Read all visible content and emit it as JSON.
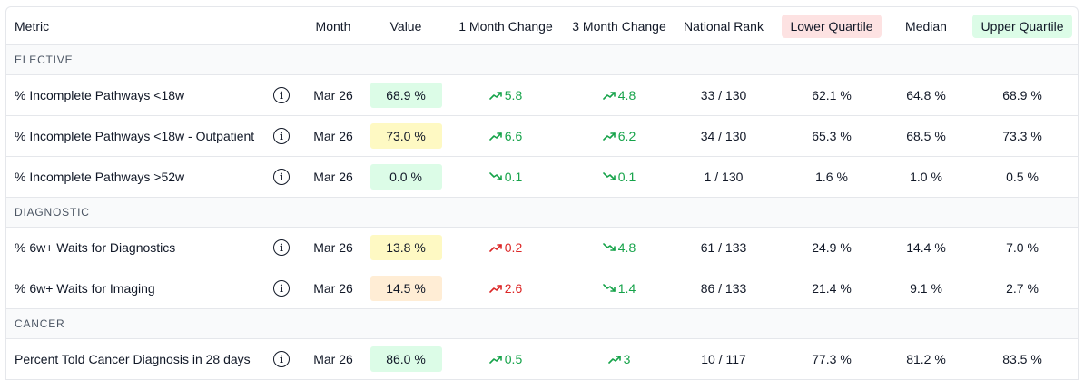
{
  "headers": {
    "metric": "Metric",
    "month": "Month",
    "value": "Value",
    "one_month": "1 Month Change",
    "three_month": "3 Month Change",
    "rank": "National Rank",
    "lower": "Lower Quartile",
    "median": "Median",
    "upper": "Upper Quartile"
  },
  "colors": {
    "green_bg": "#dcfce7",
    "yellow_bg": "#fef9c3",
    "orange_bg": "#ffedd5",
    "red_bg": "#fde2e2",
    "up_green": "#16a34a",
    "up_red": "#dc2626"
  },
  "sections": [
    {
      "label": "ELECTIVE",
      "rows": [
        {
          "metric": "% Incomplete Pathways <18w",
          "month": "Mar 26",
          "value": "68.9 %",
          "value_color": "green",
          "one_month": "5.8",
          "one_dir": "up",
          "one_color": "green",
          "three_month": "4.8",
          "three_dir": "up",
          "three_color": "green",
          "rank": "33 / 130",
          "lower": "62.1 %",
          "median": "64.8 %",
          "upper": "68.9 %"
        },
        {
          "metric": "% Incomplete Pathways <18w - Outpatient",
          "month": "Mar 26",
          "value": "73.0 %",
          "value_color": "yellow",
          "one_month": "6.6",
          "one_dir": "up",
          "one_color": "green",
          "three_month": "6.2",
          "three_dir": "up",
          "three_color": "green",
          "rank": "34 / 130",
          "lower": "65.3 %",
          "median": "68.5 %",
          "upper": "73.3 %"
        },
        {
          "metric": "% Incomplete Pathways >52w",
          "month": "Mar 26",
          "value": "0.0 %",
          "value_color": "green",
          "one_month": "0.1",
          "one_dir": "down",
          "one_color": "green",
          "three_month": "0.1",
          "three_dir": "down",
          "three_color": "green",
          "rank": "1 / 130",
          "lower": "1.6 %",
          "median": "1.0 %",
          "upper": "0.5 %"
        }
      ]
    },
    {
      "label": "DIAGNOSTIC",
      "rows": [
        {
          "metric": "% 6w+ Waits for Diagnostics",
          "month": "Mar 26",
          "value": "13.8 %",
          "value_color": "yellow",
          "one_month": "0.2",
          "one_dir": "up",
          "one_color": "red",
          "three_month": "4.8",
          "three_dir": "down",
          "three_color": "green",
          "rank": "61 / 133",
          "lower": "24.9 %",
          "median": "14.4 %",
          "upper": "7.0 %"
        },
        {
          "metric": "% 6w+ Waits for Imaging",
          "month": "Mar 26",
          "value": "14.5 %",
          "value_color": "orange",
          "one_month": "2.6",
          "one_dir": "up",
          "one_color": "red",
          "three_month": "1.4",
          "three_dir": "down",
          "three_color": "green",
          "rank": "86 / 133",
          "lower": "21.4 %",
          "median": "9.1 %",
          "upper": "2.7 %"
        }
      ]
    },
    {
      "label": "CANCER",
      "rows": [
        {
          "metric": "Percent Told Cancer Diagnosis in 28 days",
          "month": "Mar 26",
          "value": "86.0 %",
          "value_color": "green",
          "one_month": "0.5",
          "one_dir": "up",
          "one_color": "green",
          "three_month": "3",
          "three_dir": "up",
          "three_color": "green",
          "rank": "10 / 117",
          "lower": "77.3 %",
          "median": "81.2 %",
          "upper": "83.5 %"
        }
      ]
    }
  ]
}
